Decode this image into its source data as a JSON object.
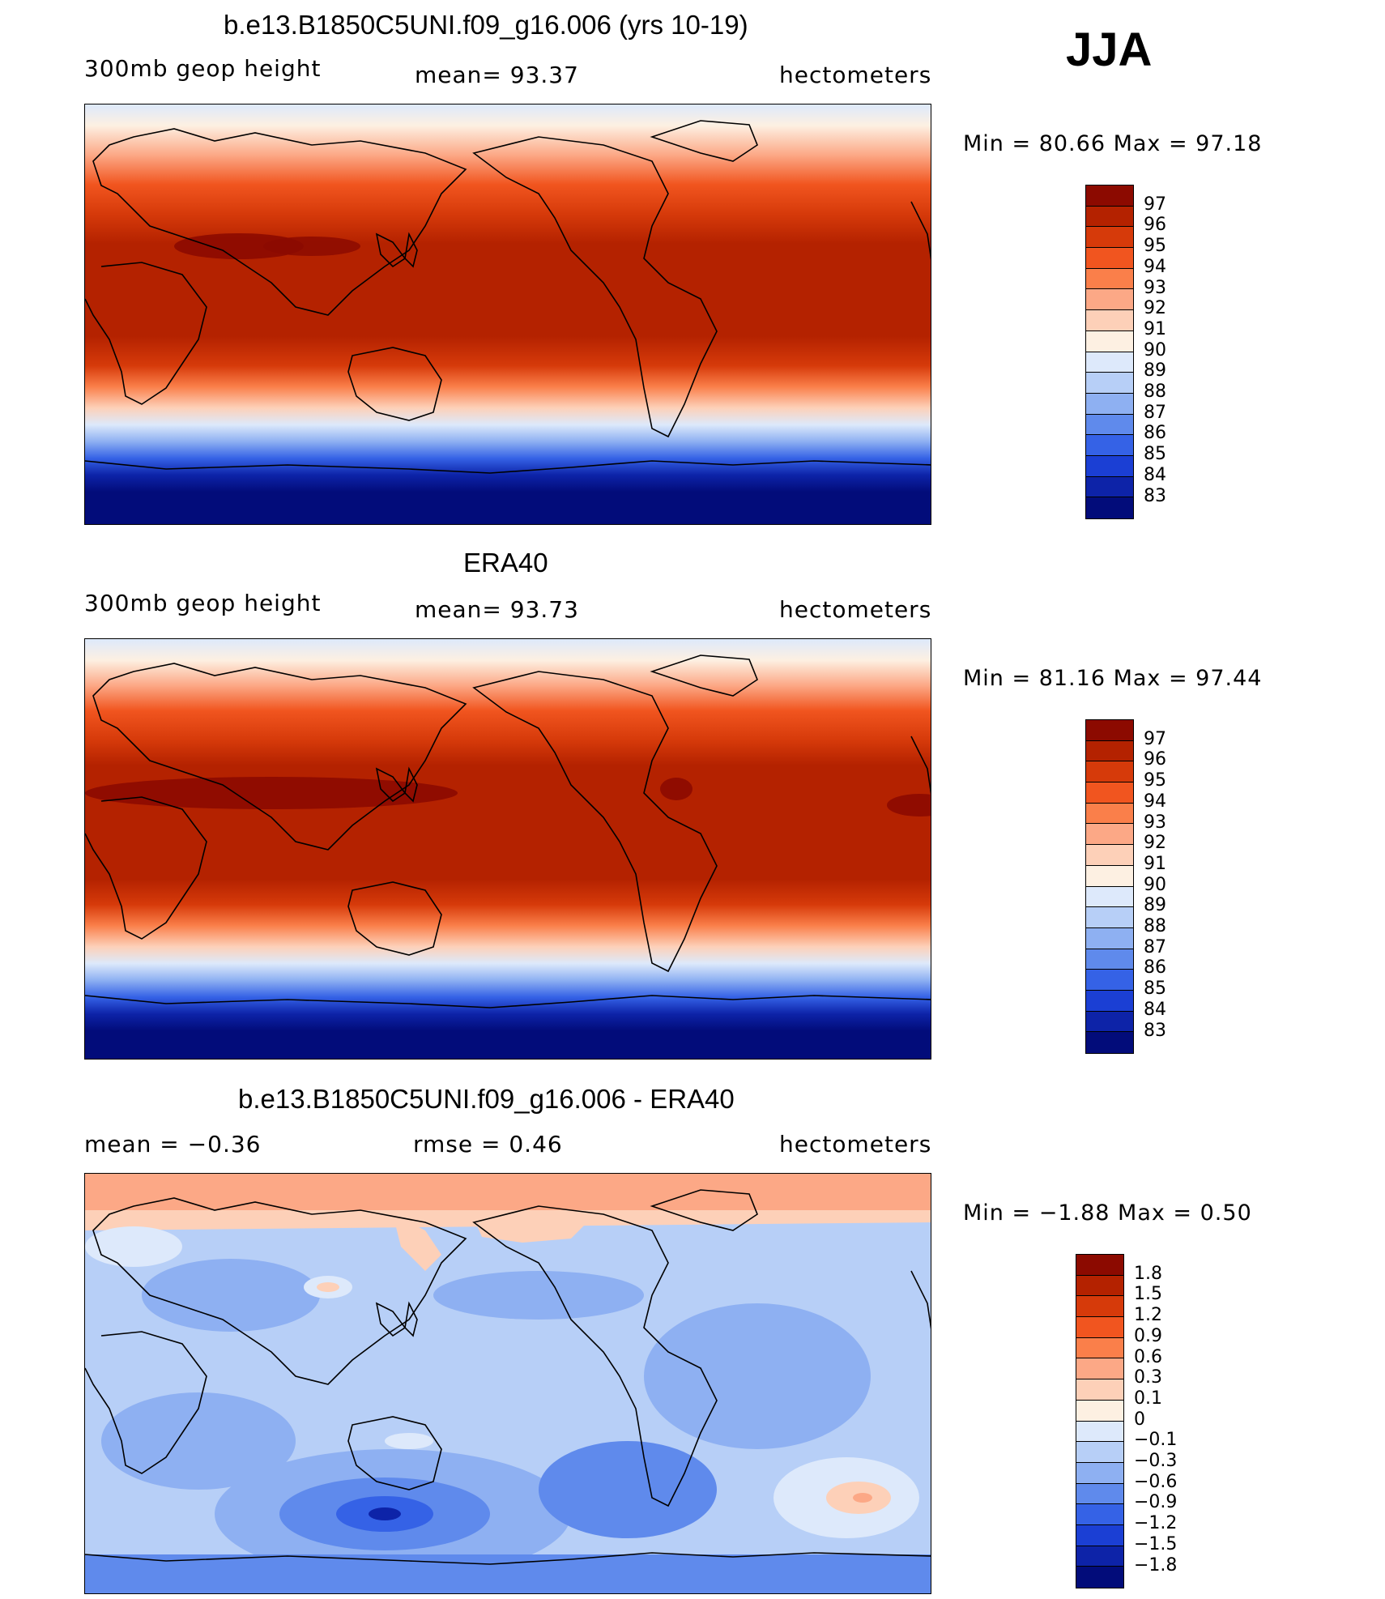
{
  "season": "JJA",
  "panels": [
    {
      "title": "b.e13.B1850C5UNI.f09_g16.006 (yrs 10-19)",
      "left_label": "300mb geop height",
      "center_label": "mean=  93.37",
      "right_label": "hectometers",
      "minmax": "Min =  80.66 Max =  97.18",
      "legend_labels": [
        "97",
        "96",
        "95",
        "94",
        "93",
        "92",
        "91",
        "90",
        "89",
        "88",
        "87",
        "86",
        "85",
        "84",
        "83"
      ],
      "legend_colors": [
        "#8c0a00",
        "#b42200",
        "#d63a0a",
        "#f1551f",
        "#fa7f4a",
        "#fca886",
        "#fdd0b8",
        "#fdf0e2",
        "#dde9fb",
        "#b7cff7",
        "#8eb0f2",
        "#5f8aec",
        "#3562e6",
        "#1b3fd4",
        "#0d23a8",
        "#020c7a"
      ]
    },
    {
      "title": "ERA40",
      "left_label": "300mb geop height",
      "center_label": "mean=  93.73",
      "right_label": "hectometers",
      "minmax": "Min =  81.16 Max =  97.44",
      "legend_labels": [
        "97",
        "96",
        "95",
        "94",
        "93",
        "92",
        "91",
        "90",
        "89",
        "88",
        "87",
        "86",
        "85",
        "84",
        "83"
      ],
      "legend_colors": [
        "#8c0a00",
        "#b42200",
        "#d63a0a",
        "#f1551f",
        "#fa7f4a",
        "#fca886",
        "#fdd0b8",
        "#fdf0e2",
        "#dde9fb",
        "#b7cff7",
        "#8eb0f2",
        "#5f8aec",
        "#3562e6",
        "#1b3fd4",
        "#0d23a8",
        "#020c7a"
      ]
    },
    {
      "title": "b.e13.B1850C5UNI.f09_g16.006 - ERA40",
      "left_label": "mean =   −0.36",
      "center_label": "rmse =    0.46",
      "right_label": "hectometers",
      "minmax": "Min =  −1.88 Max =    0.50",
      "legend_labels": [
        "1.8",
        "1.5",
        "1.2",
        "0.9",
        "0.6",
        "0.3",
        "0.1",
        "0",
        "−0.1",
        "−0.3",
        "−0.6",
        "−0.9",
        "−1.2",
        "−1.5",
        "−1.8"
      ],
      "legend_colors": [
        "#8c0a00",
        "#b42200",
        "#d63a0a",
        "#f1551f",
        "#fa7f4a",
        "#fca886",
        "#fdd0b8",
        "#fdf0e2",
        "#dde9fb",
        "#b7cff7",
        "#8eb0f2",
        "#5f8aec",
        "#3562e6",
        "#1b3fd4",
        "#0d23a8",
        "#020c7a"
      ]
    }
  ]
}
